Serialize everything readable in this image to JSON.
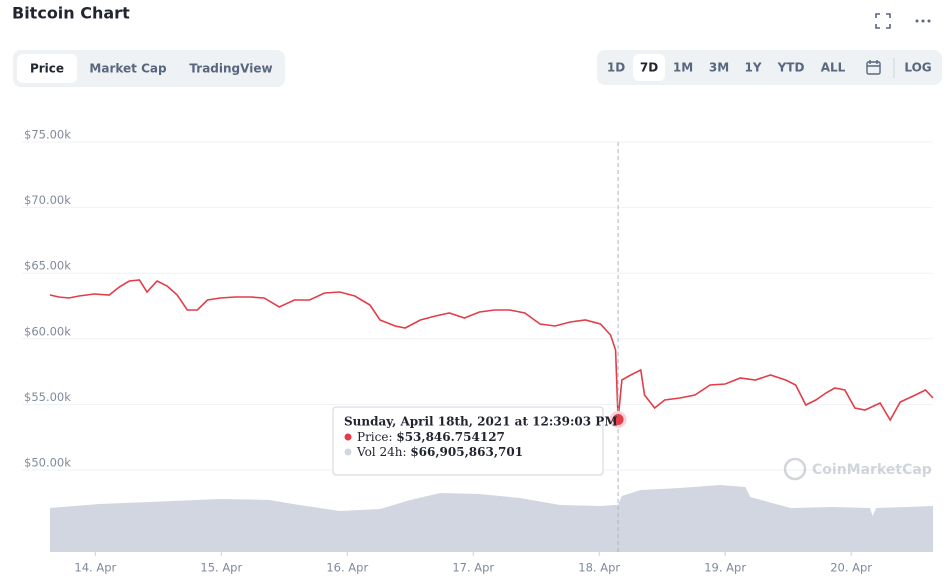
{
  "header": {
    "title": "Bitcoin Chart"
  },
  "tabs": [
    "Price",
    "Market Cap",
    "TradingView"
  ],
  "ranges": [
    "1D",
    "7D",
    "1M",
    "3M",
    "1Y",
    "YTD",
    "ALL"
  ],
  "log_button": "LOG",
  "watermark": "CoinMarketCap",
  "chart_data": {
    "type": "line",
    "xlim": [
      13.64,
      20.65
    ],
    "xticks": [
      {
        "value": 14,
        "label": "14. Apr"
      },
      {
        "value": 15,
        "label": "15. Apr"
      },
      {
        "value": 16,
        "label": "16. Apr"
      },
      {
        "value": 17,
        "label": "17. Apr"
      },
      {
        "value": 18,
        "label": "18. Apr"
      },
      {
        "value": 19,
        "label": "19. Apr"
      },
      {
        "value": 20,
        "label": "20. Apr"
      }
    ],
    "ylim": [
      43750,
      75000
    ],
    "yticks": [
      {
        "value": 50000,
        "label": "$50.00k"
      },
      {
        "value": 55000,
        "label": "$55.00k"
      },
      {
        "value": 60000,
        "label": "$60.00k"
      },
      {
        "value": 65000,
        "label": "$65.00k"
      },
      {
        "value": 70000,
        "label": "$70.00k"
      },
      {
        "value": 75000,
        "label": "$75.00k"
      }
    ],
    "y2lim": [
      0,
      580000000000
    ],
    "grid": true,
    "series": [
      {
        "name": "Price",
        "color": "#e23d48",
        "x": [
          13.64,
          13.71,
          13.79,
          13.87,
          13.99,
          14.11,
          14.19,
          14.27,
          14.35,
          14.41,
          14.49,
          14.57,
          14.65,
          14.73,
          14.81,
          14.89,
          14.99,
          15.11,
          15.23,
          15.34,
          15.46,
          15.58,
          15.7,
          15.82,
          15.94,
          16.06,
          16.18,
          16.26,
          16.38,
          16.46,
          16.58,
          16.7,
          16.81,
          16.93,
          17.05,
          17.17,
          17.29,
          17.41,
          17.53,
          17.65,
          17.77,
          17.89,
          18.01,
          18.09,
          18.13,
          18.15,
          18.18,
          18.25,
          18.33,
          18.36,
          18.44,
          18.52,
          18.64,
          18.76,
          18.88,
          19.0,
          19.12,
          19.24,
          19.36,
          19.48,
          19.56,
          19.64,
          19.72,
          19.8,
          19.87,
          19.95,
          20.03,
          20.11,
          20.23,
          20.31,
          20.39,
          20.51,
          20.59,
          20.65
        ],
        "values": [
          63338,
          63186,
          63110,
          63262,
          63415,
          63338,
          63948,
          64405,
          64482,
          63567,
          64405,
          64024,
          63338,
          62195,
          62195,
          62957,
          63110,
          63186,
          63186,
          63110,
          62424,
          62957,
          62957,
          63491,
          63567,
          63262,
          62576,
          61433,
          60976,
          60823,
          61433,
          61738,
          61966,
          61585,
          62043,
          62195,
          62195,
          61966,
          61128,
          60976,
          61280,
          61433,
          61128,
          60290,
          59146,
          53846.754127,
          56860,
          57241,
          57622,
          55716,
          54725,
          55335,
          55488,
          55716,
          56479,
          56555,
          57012,
          56860,
          57241,
          56860,
          56479,
          54954,
          55335,
          55869,
          56250,
          56097,
          54725,
          54573,
          55107,
          53811,
          55183,
          55716,
          56097,
          55488
        ]
      },
      {
        "name": "Vol 24h",
        "color": "#d1d6e0",
        "axis": "y2",
        "x": [
          13.64,
          14.03,
          14.43,
          14.99,
          15.38,
          15.62,
          15.94,
          16.26,
          16.5,
          16.74,
          17.05,
          17.37,
          17.69,
          18.01,
          18.15,
          18.18,
          18.33,
          18.64,
          18.96,
          19.16,
          19.2,
          19.52,
          19.84,
          20.15,
          20.17,
          20.2,
          20.65
        ],
        "values": [
          62200000000,
          67900000000,
          70700000000,
          75000000000,
          73600000000,
          66500000000,
          58000000000,
          60800000000,
          73600000000,
          83500000000,
          82000000000,
          76400000000,
          66500000000,
          65100000000,
          66905863701,
          79200000000,
          87700000000,
          90500000000,
          94800000000,
          92000000000,
          77800000000,
          62200000000,
          63700000000,
          62200000000,
          50900000000,
          62200000000,
          65100000000
        ]
      }
    ],
    "tooltip": {
      "title": "Sunday, April 18th, 2021 at 12:39:03 PM",
      "series_index": 0,
      "point_index": 45,
      "items": [
        {
          "label": "Price:",
          "value": "$53,846.754127"
        },
        {
          "label": "Vol 24h:",
          "value": "$66,905,863,701"
        }
      ]
    }
  }
}
